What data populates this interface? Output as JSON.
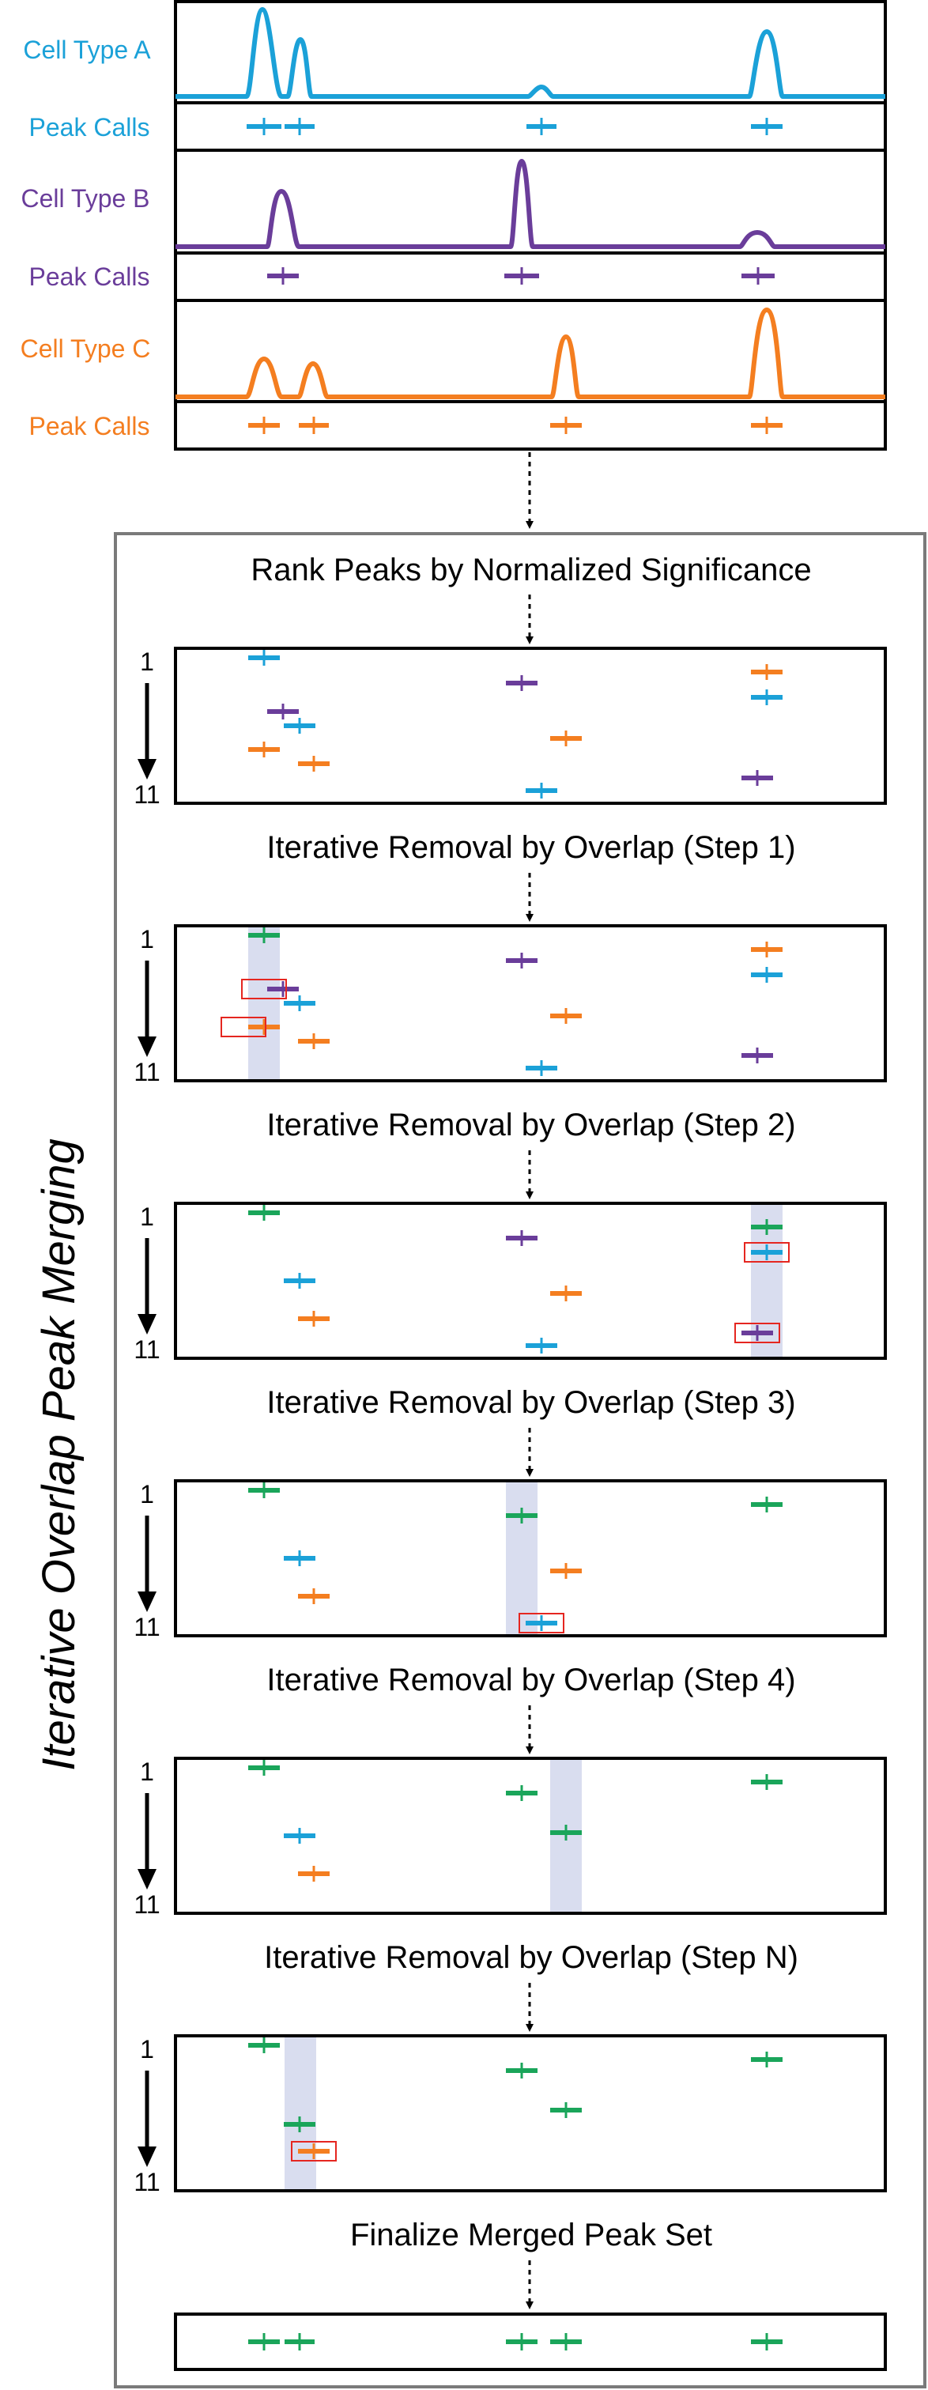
{
  "colors": {
    "cell_a": "#1ba1d8",
    "cell_b": "#6a3d9a",
    "cell_c": "#f47e20",
    "merged": "#1aa55a",
    "frame": "#000000",
    "outer_frame": "#7a7a7a",
    "highlight_band": "#d9ddef",
    "selection_box": "#e52620"
  },
  "tracks": [
    {
      "id": "a",
      "cell_label": "Cell Type A",
      "peak_label": "Peak Calls",
      "color_key": "cell_a"
    },
    {
      "id": "b",
      "cell_label": "Cell Type B",
      "peak_label": "Peak Calls",
      "color_key": "cell_b"
    },
    {
      "id": "c",
      "cell_label": "Cell Type C",
      "peak_label": "Peak Calls",
      "color_key": "cell_c"
    }
  ],
  "side_title": "Iterative Overlap Peak Merging",
  "rank_top": "1",
  "rank_bottom": "11",
  "steps": [
    "Rank Peaks by Normalized Significance",
    "Iterative Removal by Overlap (Step 1)",
    "Iterative Removal by Overlap (Step 2)",
    "Iterative Removal by Overlap (Step 3)",
    "Iterative Removal by Overlap (Step 4)",
    "Iterative Removal by Overlap (Step N)",
    "Finalize Merged Peak Set"
  ]
}
